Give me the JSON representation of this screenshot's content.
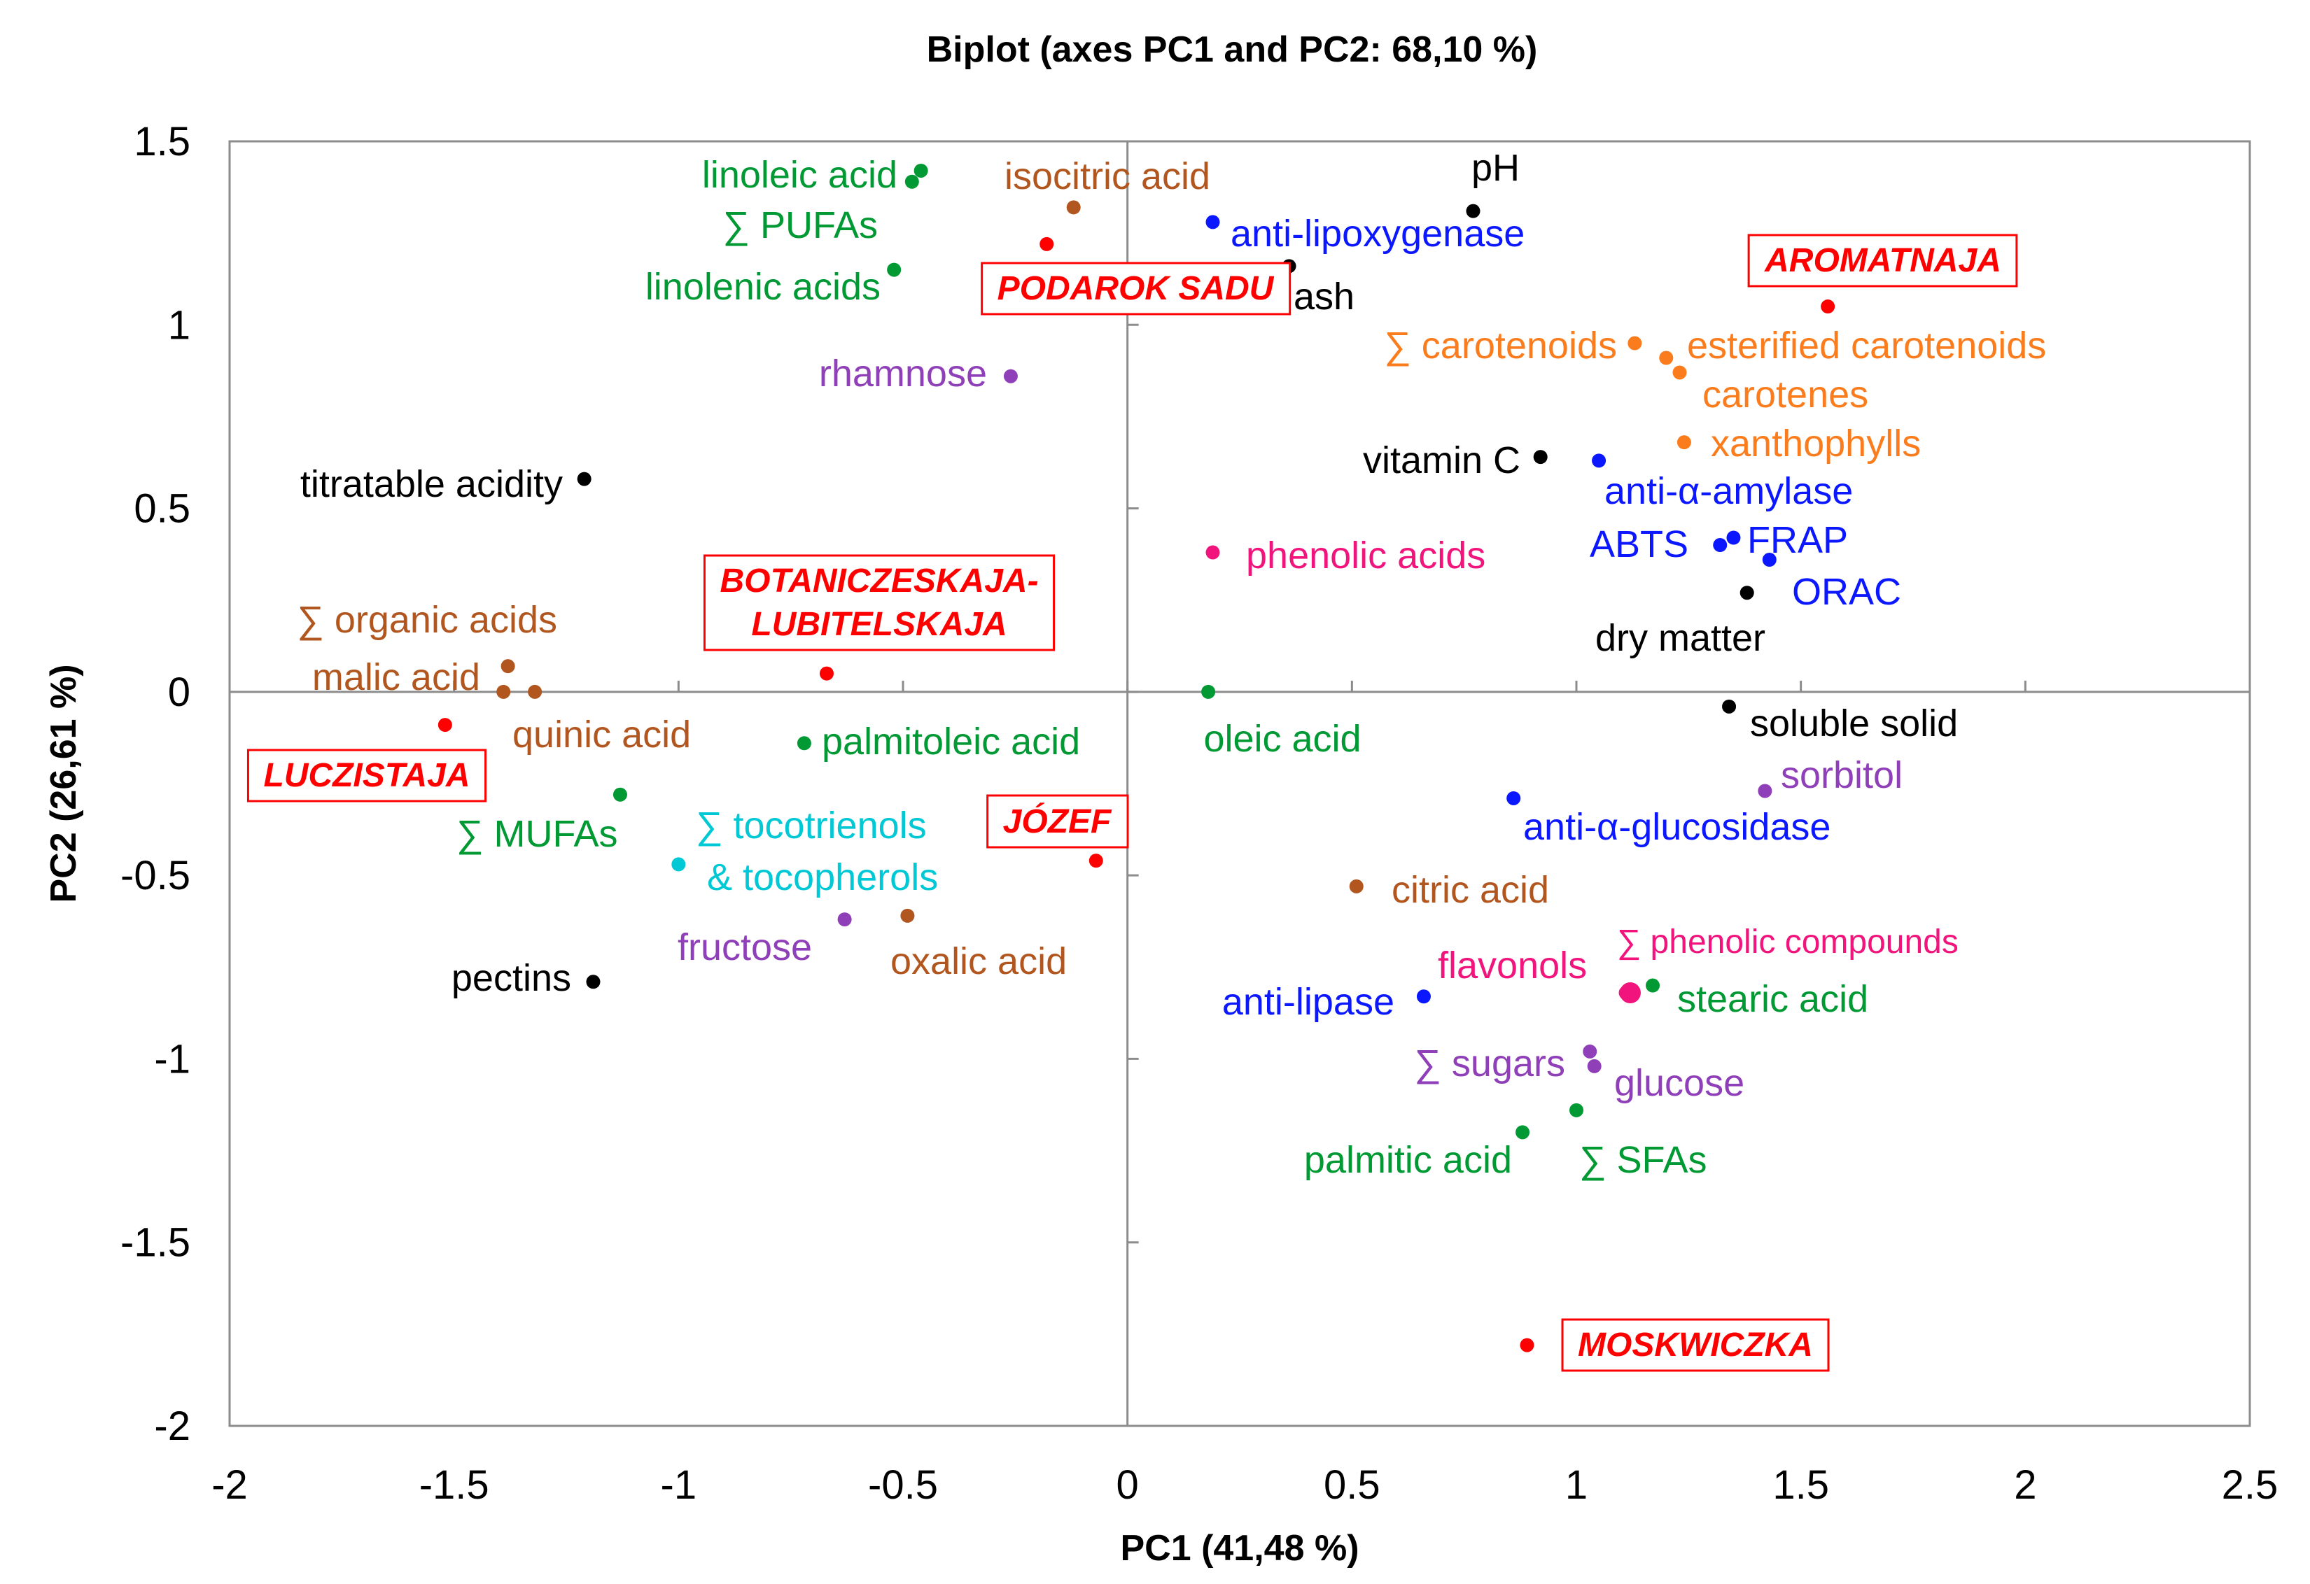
{
  "chart_data": {
    "type": "scatter",
    "title": "Biplot (axes PC1 and PC2: 68,10 %)",
    "xlabel": "PC1 (41,48 %)",
    "ylabel": "PC2 (26,61 %)",
    "xlim": [
      -2,
      2.5
    ],
    "ylim": [
      -2,
      1.5
    ],
    "xticks": [
      -2,
      -1.5,
      -1,
      -0.5,
      0,
      0.5,
      1,
      1.5,
      2,
      2.5
    ],
    "yticks": [
      -2,
      -1.5,
      -1,
      -0.5,
      0,
      0.5,
      1,
      1.5
    ],
    "xtick_labels": [
      "-2",
      "-1.5",
      "-1",
      "-0.5",
      "0",
      "0.5",
      "1",
      "1.5",
      "2",
      "2.5"
    ],
    "ytick_labels": [
      "-2",
      "-1.5",
      "-1",
      "-0.5",
      "0",
      "0.5",
      "1",
      "1.5"
    ],
    "grid": false,
    "colors": {
      "green": "#009933",
      "brown": "#b2561f",
      "blue": "#0b17ff",
      "black": "#000000",
      "orange": "#fb7c1c",
      "purple": "#8f3fb8",
      "pink": "#f0147c",
      "cyan": "#00c8d4",
      "red": "#ff0000"
    },
    "points": [
      {
        "label": "linoleic acid",
        "x": -0.46,
        "y": 1.42,
        "color": "green"
      },
      {
        "label": "∑ PUFAs",
        "x": -0.48,
        "y": 1.39,
        "color": "green"
      },
      {
        "label": "linolenic acids",
        "x": -0.52,
        "y": 1.15,
        "color": "green"
      },
      {
        "label": "isocitric acid",
        "x": -0.12,
        "y": 1.32,
        "color": "brown"
      },
      {
        "label": "rhamnose",
        "x": -0.26,
        "y": 0.86,
        "color": "purple"
      },
      {
        "label": "pH",
        "x": 0.77,
        "y": 1.31,
        "color": "black"
      },
      {
        "label": "anti-lipoxygenase",
        "x": 0.19,
        "y": 1.28,
        "color": "blue"
      },
      {
        "label": "ash",
        "x": 0.36,
        "y": 1.16,
        "color": "black"
      },
      {
        "label": "∑ carotenoids",
        "x": 1.13,
        "y": 0.95,
        "color": "orange"
      },
      {
        "label": "esterified carotenoids",
        "x": 1.2,
        "y": 0.91,
        "color": "orange"
      },
      {
        "label": "carotenes",
        "x": 1.23,
        "y": 0.87,
        "color": "orange"
      },
      {
        "label": "xanthophylls",
        "x": 1.24,
        "y": 0.68,
        "color": "orange"
      },
      {
        "label": "vitamin C",
        "x": 0.92,
        "y": 0.64,
        "color": "black"
      },
      {
        "label": "anti-α-amylase",
        "x": 1.05,
        "y": 0.63,
        "color": "blue"
      },
      {
        "label": "ABTS",
        "x": 1.32,
        "y": 0.4,
        "color": "blue"
      },
      {
        "label": "FRAP",
        "x": 1.35,
        "y": 0.42,
        "color": "blue"
      },
      {
        "label": "ORAC",
        "x": 1.43,
        "y": 0.36,
        "color": "blue"
      },
      {
        "label": "dry matter",
        "x": 1.38,
        "y": 0.27,
        "color": "black"
      },
      {
        "label": "phenolic acids",
        "x": 0.19,
        "y": 0.38,
        "color": "pink"
      },
      {
        "label": "titratable  acidity",
        "x": -1.21,
        "y": 0.58,
        "color": "black"
      },
      {
        "label": "∑ organic acids",
        "x": -1.38,
        "y": 0.07,
        "color": "brown"
      },
      {
        "label": "malic acid",
        "x": -1.39,
        "y": 0.0,
        "color": "brown"
      },
      {
        "label": "quinic acid",
        "x": -1.32,
        "y": 0.0,
        "color": "brown"
      },
      {
        "label": "palmitoleic acid",
        "x": -0.72,
        "y": -0.14,
        "color": "green"
      },
      {
        "label": "oleic acid",
        "x": 0.18,
        "y": 0.0,
        "color": "green"
      },
      {
        "label": "soluble solid",
        "x": 1.34,
        "y": -0.04,
        "color": "black"
      },
      {
        "label": "sorbitol",
        "x": 1.42,
        "y": -0.27,
        "color": "purple"
      },
      {
        "label": "anti-α-glucosidase",
        "x": 0.86,
        "y": -0.29,
        "color": "blue"
      },
      {
        "label": "∑ MUFAs",
        "x": -1.13,
        "y": -0.28,
        "color": "green"
      },
      {
        "label": "∑ tocotrienols",
        "x": -1.0,
        "y": -0.47,
        "color": "cyan"
      },
      {
        "label": "& tocopherols",
        "x": null,
        "y": null,
        "color": "cyan"
      },
      {
        "label": "fructose",
        "x": -0.63,
        "y": -0.62,
        "color": "purple"
      },
      {
        "label": "oxalic acid",
        "x": -0.49,
        "y": -0.61,
        "color": "brown"
      },
      {
        "label": "citric acid",
        "x": 0.51,
        "y": -0.53,
        "color": "brown"
      },
      {
        "label": "pectins",
        "x": -1.19,
        "y": -0.79,
        "color": "black"
      },
      {
        "label": "∑ phenolic compounds",
        "x": 1.12,
        "y": -0.82,
        "color": "pink"
      },
      {
        "label": "flavonols",
        "x": 1.11,
        "y": -0.82,
        "color": "pink"
      },
      {
        "label": "stearic acid",
        "x": 1.17,
        "y": -0.8,
        "color": "green"
      },
      {
        "label": "anti-lipase",
        "x": 0.66,
        "y": -0.83,
        "color": "blue"
      },
      {
        "label": "∑ sugars",
        "x": 1.03,
        "y": -0.98,
        "color": "purple"
      },
      {
        "label": "glucose",
        "x": 1.04,
        "y": -1.02,
        "color": "purple"
      },
      {
        "label": "∑ SFAs",
        "x": 1.0,
        "y": -1.14,
        "color": "green"
      },
      {
        "label": "palmitic acid",
        "x": 0.88,
        "y": -1.2,
        "color": "green"
      }
    ],
    "cultivars": [
      {
        "label": "PODAROK SADU",
        "x": -0.18,
        "y": 1.22
      },
      {
        "label": "AROMATNAJA",
        "x": 1.56,
        "y": 1.05
      },
      {
        "label": "BOTANICZESKAJA-",
        "label2": "LUBITELSKAJA",
        "x": -0.67,
        "y": 0.05
      },
      {
        "label": "LUCZISTAJA",
        "x": -1.52,
        "y": -0.09
      },
      {
        "label": "JÓZEF",
        "x": -0.07,
        "y": -0.46
      },
      {
        "label": "MOSKWICZKA",
        "x": 0.89,
        "y": -1.78
      }
    ]
  }
}
